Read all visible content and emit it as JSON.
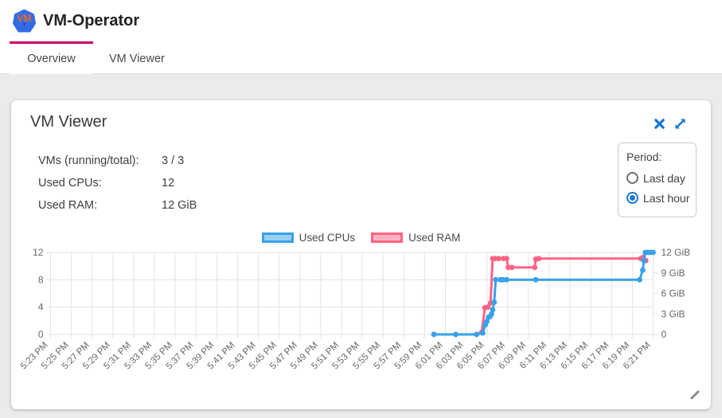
{
  "header": {
    "app_title": "VM-Operator",
    "logo_text": "VM"
  },
  "tabs": [
    {
      "label": "Overview",
      "active": true
    },
    {
      "label": "VM Viewer",
      "active": false
    }
  ],
  "panel": {
    "title": "VM Viewer",
    "stats": [
      {
        "label": "VMs (running/total):",
        "value": "3 / 3"
      },
      {
        "label": "Used CPUs:",
        "value": "12"
      },
      {
        "label": "Used RAM:",
        "value": "12 GiB"
      }
    ],
    "period": {
      "label": "Period:",
      "options": [
        {
          "label": "Last day",
          "selected": false
        },
        {
          "label": "Last hour",
          "selected": true
        }
      ]
    },
    "icons": {
      "close": "x-mark",
      "maximize": "diagonal-expand-arrows",
      "resize": "diagonal-grip"
    }
  },
  "chart_data": {
    "type": "line",
    "title": "",
    "legend_position": "top",
    "grid": true,
    "x_domain_minutes": [
      0,
      58
    ],
    "x_axis": {
      "start": "5:23 PM",
      "end": "6:21 PM",
      "interval_minutes": 2,
      "labels": [
        "5:23 PM",
        "5:25 PM",
        "5:27 PM",
        "5:29 PM",
        "5:31 PM",
        "5:33 PM",
        "5:35 PM",
        "5:37 PM",
        "5:39 PM",
        "5:41 PM",
        "5:43 PM",
        "5:45 PM",
        "5:47 PM",
        "5:49 PM",
        "5:51 PM",
        "5:53 PM",
        "5:55 PM",
        "5:57 PM",
        "5:59 PM",
        "6:01 PM",
        "6:03 PM",
        "6:05 PM",
        "6:07 PM",
        "6:09 PM",
        "6:11 PM",
        "6:13 PM",
        "6:15 PM",
        "6:17 PM",
        "6:19 PM",
        "6:21 PM"
      ]
    },
    "y_axis_left": {
      "ticks": [
        "0",
        "4",
        "8",
        "12"
      ],
      "range": [
        0,
        12
      ]
    },
    "y_axis_right": {
      "ticks": [
        "0",
        "3 GiB",
        "6 GiB",
        "9 GiB",
        "12 GiB"
      ],
      "range": [
        0,
        12
      ]
    },
    "legend": [
      {
        "name": "Used CPUs",
        "color": "#36a2eb",
        "fill": "#9ad0f5"
      },
      {
        "name": "Used RAM",
        "color": "#ff6384",
        "fill": "#ffb1c2"
      }
    ],
    "series": [
      {
        "name": "Used RAM",
        "unit": "GiB",
        "axis": "right",
        "color": "#ff6384",
        "points": [
          [
            36.9,
            0
          ],
          [
            39,
            0
          ],
          [
            41.0,
            0
          ],
          [
            41.5,
            0.3
          ],
          [
            41.8,
            3.9
          ],
          [
            42.1,
            4.0
          ],
          [
            42.35,
            4.6
          ],
          [
            42.55,
            11.1
          ],
          [
            42.8,
            11.1
          ],
          [
            43.15,
            11.1
          ],
          [
            43.6,
            11.1
          ],
          [
            43.9,
            11.1
          ],
          [
            44.05,
            9.8
          ],
          [
            44.4,
            9.8
          ],
          [
            46.6,
            9.8
          ],
          [
            46.7,
            11.0
          ],
          [
            47.0,
            11.1
          ],
          [
            56.8,
            11.1
          ],
          [
            57.05,
            11.3
          ],
          [
            57.3,
            10.8
          ]
        ]
      },
      {
        "name": "Used CPUs",
        "unit": "CPUs",
        "axis": "left",
        "color": "#36a2eb",
        "points": [
          [
            36.9,
            0
          ],
          [
            39,
            0
          ],
          [
            41.0,
            0
          ],
          [
            41.6,
            0.2
          ],
          [
            41.85,
            1.4
          ],
          [
            42.0,
            1.9
          ],
          [
            42.15,
            2.5
          ],
          [
            42.3,
            2.6
          ],
          [
            42.45,
            3.0
          ],
          [
            42.55,
            3.6
          ],
          [
            42.7,
            4.7
          ],
          [
            42.85,
            8
          ],
          [
            43.3,
            8
          ],
          [
            43.55,
            8
          ],
          [
            43.9,
            8
          ],
          [
            46.7,
            8
          ],
          [
            56.7,
            8
          ],
          [
            57.0,
            9.4
          ],
          [
            57.1,
            10.8
          ],
          [
            57.25,
            12
          ],
          [
            57.5,
            12
          ],
          [
            57.75,
            12
          ],
          [
            58,
            12
          ]
        ]
      }
    ]
  }
}
